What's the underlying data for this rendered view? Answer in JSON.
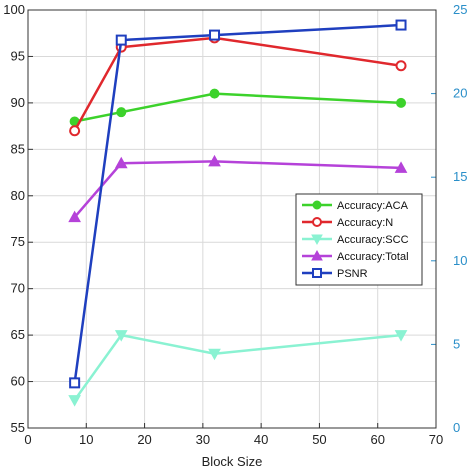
{
  "chart_data": {
    "type": "line",
    "title": "",
    "xlabel": "Block Size",
    "ylabel_left": "",
    "ylabel_right": "",
    "xlim": [
      0,
      70
    ],
    "ylim_left": [
      55,
      100
    ],
    "ylim_right": [
      0,
      25
    ],
    "x_ticks": [
      0,
      10,
      20,
      30,
      40,
      50,
      60,
      70
    ],
    "y_ticks_left": [
      55,
      60,
      65,
      70,
      75,
      80,
      85,
      90,
      95,
      100
    ],
    "y_ticks_right": [
      0,
      5,
      10,
      15,
      20,
      25
    ],
    "grid": true,
    "legend_position": "center-right",
    "x": [
      8,
      16,
      32,
      64
    ],
    "series": [
      {
        "name": "Accuracy:ACA",
        "axis": "left",
        "values": [
          88.0,
          89.0,
          91.0,
          90.0
        ],
        "color": "#3cd22b",
        "marker": "circle-filled"
      },
      {
        "name": "Accuracy:N",
        "axis": "left",
        "values": [
          87.0,
          96.0,
          97.0,
          94.0
        ],
        "color": "#e0282d",
        "marker": "circle-open"
      },
      {
        "name": "Accuracy:SCC",
        "axis": "left",
        "values": [
          58.0,
          65.0,
          63.0,
          65.0
        ],
        "color": "#8af2d2",
        "marker": "triangle-down"
      },
      {
        "name": "Accuracy:Total",
        "axis": "left",
        "values": [
          77.7,
          83.5,
          83.7,
          83.0
        ],
        "color": "#b542d9",
        "marker": "triangle-up"
      },
      {
        "name": "PSNR",
        "axis": "right",
        "values": [
          2.7,
          23.2,
          23.5,
          24.1
        ],
        "color": "#1f3fbf",
        "marker": "square-open"
      }
    ]
  }
}
